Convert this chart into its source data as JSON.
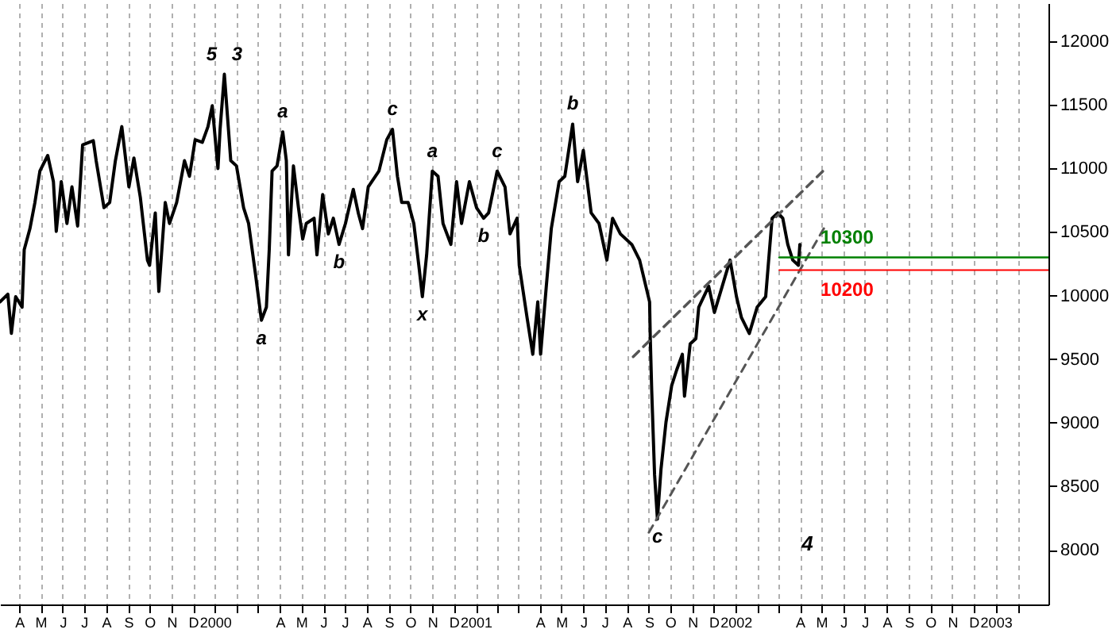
{
  "chart_data": {
    "type": "line",
    "xlim": [
      "1999-03-05",
      "2003-03-16"
    ],
    "ylim": [
      7570,
      12300
    ],
    "xticks": [
      {
        "value": "1999-04",
        "label": "A"
      },
      {
        "value": "1999-05",
        "label": "M"
      },
      {
        "value": "1999-06",
        "label": "J"
      },
      {
        "value": "1999-07",
        "label": "J"
      },
      {
        "value": "1999-08",
        "label": "A"
      },
      {
        "value": "1999-09",
        "label": "S"
      },
      {
        "value": "1999-10",
        "label": "O"
      },
      {
        "value": "1999-11",
        "label": "N"
      },
      {
        "value": "1999-12",
        "label": "D"
      },
      {
        "value": "2000-01",
        "label": "2000"
      },
      {
        "value": "2000-02",
        "label": null
      },
      {
        "value": "2000-03",
        "label": null
      },
      {
        "value": "2000-04",
        "label": "A"
      },
      {
        "value": "2000-05",
        "label": "M"
      },
      {
        "value": "2000-06",
        "label": "J"
      },
      {
        "value": "2000-07",
        "label": "J"
      },
      {
        "value": "2000-08",
        "label": "A"
      },
      {
        "value": "2000-09",
        "label": "S"
      },
      {
        "value": "2000-10",
        "label": "O"
      },
      {
        "value": "2000-11",
        "label": "N"
      },
      {
        "value": "2000-12",
        "label": "D"
      },
      {
        "value": "2001-01",
        "label": "2001"
      },
      {
        "value": "2001-02",
        "label": null
      },
      {
        "value": "2001-03",
        "label": null
      },
      {
        "value": "2001-04",
        "label": "A"
      },
      {
        "value": "2001-05",
        "label": "M"
      },
      {
        "value": "2001-06",
        "label": "J"
      },
      {
        "value": "2001-07",
        "label": "J"
      },
      {
        "value": "2001-08",
        "label": "A"
      },
      {
        "value": "2001-09",
        "label": "S"
      },
      {
        "value": "2001-10",
        "label": "O"
      },
      {
        "value": "2001-11",
        "label": "N"
      },
      {
        "value": "2001-12",
        "label": "D"
      },
      {
        "value": "2002-01",
        "label": "2002"
      },
      {
        "value": "2002-02",
        "label": null
      },
      {
        "value": "2002-03",
        "label": null
      },
      {
        "value": "2002-04",
        "label": "A"
      },
      {
        "value": "2002-05",
        "label": "M"
      },
      {
        "value": "2002-06",
        "label": "J"
      },
      {
        "value": "2002-07",
        "label": "J"
      },
      {
        "value": "2002-08",
        "label": "A"
      },
      {
        "value": "2002-09",
        "label": "S"
      },
      {
        "value": "2002-10",
        "label": "O"
      },
      {
        "value": "2002-11",
        "label": "N"
      },
      {
        "value": "2002-12",
        "label": "D"
      },
      {
        "value": "2003-01",
        "label": "2003"
      },
      {
        "value": "2003-02",
        "label": null
      }
    ],
    "yticks": [
      8000,
      8500,
      9000,
      9500,
      10000,
      10500,
      11000,
      11500,
      12000
    ],
    "grid": "x",
    "series": [
      {
        "color": "#000000",
        "x": [
          "1999-03-05",
          "1999-03-16",
          "1999-03-21",
          "1999-03-27",
          "1999-04-05",
          "1999-04-08",
          "1999-04-16",
          "1999-04-23",
          "1999-04-30",
          "1999-05-11",
          "1999-05-19",
          "1999-05-23",
          "1999-05-30",
          "1999-06-07",
          "1999-06-14",
          "1999-06-22",
          "1999-06-29",
          "1999-07-14",
          "1999-07-18",
          "1999-07-29",
          "1999-08-06",
          "1999-08-14",
          "1999-08-23",
          "1999-09-02",
          "1999-09-09",
          "1999-09-18",
          "1999-09-28",
          "1999-10-01",
          "1999-10-09",
          "1999-10-14",
          "1999-10-23",
          "1999-10-29",
          "1999-11-08",
          "1999-11-19",
          "1999-11-26",
          "1999-12-04",
          "1999-12-14",
          "1999-12-22",
          "1999-12-28",
          "2000-01-05",
          "2000-01-08",
          "2000-01-14",
          "2000-01-23",
          "2000-01-31",
          "2000-02-10",
          "2000-02-17",
          "2000-02-27",
          "2000-03-06",
          "2000-03-13",
          "2000-03-17",
          "2000-03-21",
          "2000-03-28",
          "2000-04-05",
          "2000-04-10",
          "2000-04-13",
          "2000-04-20",
          "2000-04-27",
          "2000-05-03",
          "2000-05-08",
          "2000-05-19",
          "2000-05-23",
          "2000-05-31",
          "2000-06-08",
          "2000-06-15",
          "2000-06-23",
          "2000-07-02",
          "2000-07-13",
          "2000-07-20",
          "2000-07-26",
          "2000-08-03",
          "2000-08-18",
          "2000-08-29",
          "2000-09-06",
          "2000-09-13",
          "2000-09-19",
          "2000-09-28",
          "2000-10-06",
          "2000-10-13",
          "2000-10-18",
          "2000-10-24",
          "2000-11-01",
          "2000-11-09",
          "2000-11-16",
          "2000-11-27",
          "2000-12-05",
          "2000-12-12",
          "2000-12-23",
          "2001-01-02",
          "2001-01-12",
          "2001-01-19",
          "2001-01-31",
          "2001-02-11",
          "2001-02-18",
          "2001-02-28",
          "2001-03-03",
          "2001-03-14",
          "2001-03-22",
          "2001-03-29",
          "2001-04-02",
          "2001-04-10",
          "2001-04-17",
          "2001-04-28",
          "2001-05-06",
          "2001-05-17",
          "2001-05-24",
          "2001-06-01",
          "2001-06-12",
          "2001-06-23",
          "2001-07-04",
          "2001-07-12",
          "2001-07-23",
          "2001-08-08",
          "2001-08-19",
          "2001-09-02",
          "2001-09-03",
          "2001-09-05",
          "2001-09-09",
          "2001-09-13",
          "2001-09-18",
          "2001-09-25",
          "2001-10-03",
          "2001-10-10",
          "2001-10-18",
          "2001-10-21",
          "2001-10-29",
          "2001-11-06",
          "2001-11-10",
          "2001-11-24",
          "2001-12-02",
          "2001-12-13",
          "2001-12-24",
          "2002-01-02",
          "2002-01-09",
          "2002-01-20",
          "2002-01-31",
          "2002-02-12",
          "2002-02-21",
          "2002-03-01",
          "2002-03-08",
          "2002-03-15",
          "2002-03-22",
          "2002-03-30",
          "2002-04-01"
        ],
        "values": [
          9950,
          10011,
          9702,
          9991,
          9908,
          10361,
          10526,
          10732,
          10979,
          11102,
          10896,
          10505,
          10896,
          10567,
          10855,
          10547,
          11185,
          11218,
          11061,
          10691,
          10732,
          11061,
          11329,
          10855,
          11082,
          10773,
          10279,
          10238,
          10650,
          10032,
          10732,
          10567,
          10732,
          11061,
          10938,
          11226,
          11205,
          11329,
          11493,
          10999,
          11308,
          11741,
          11061,
          11020,
          10691,
          10567,
          10155,
          9806,
          9908,
          10361,
          10979,
          11020,
          11288,
          11061,
          10320,
          11020,
          10691,
          10444,
          10567,
          10608,
          10320,
          10794,
          10485,
          10608,
          10402,
          10567,
          10835,
          10650,
          10526,
          10855,
          10979,
          11226,
          11308,
          10938,
          10732,
          10732,
          10567,
          10238,
          9991,
          10320,
          10979,
          10938,
          10567,
          10402,
          10896,
          10567,
          10896,
          10691,
          10608,
          10650,
          10979,
          10855,
          10485,
          10608,
          10238,
          9826,
          9538,
          9950,
          9538,
          10073,
          10526,
          10896,
          10938,
          11349,
          10896,
          11143,
          10650,
          10567,
          10279,
          10608,
          10485,
          10402,
          10279,
          9950,
          9661,
          9250,
          8591,
          8241,
          8632,
          9003,
          9291,
          9414,
          9538,
          9208,
          9620,
          9661,
          9908,
          10073,
          9867,
          10073,
          10279,
          9991,
          9826,
          9702,
          9908,
          9991,
          10608,
          10650,
          10608,
          10402,
          10279,
          10238,
          10402
        ]
      },
      {
        "color": "#555555",
        "line_style": "dashed",
        "x": [
          "2001-08-10",
          "2002-05-05"
        ],
        "values": [
          9519,
          10988
        ]
      },
      {
        "color": "#555555",
        "line_style": "dashed",
        "x": [
          "2001-09-01",
          "2002-05-05"
        ],
        "values": [
          8136,
          10531
        ]
      },
      {
        "name": "10300",
        "color": "#008000",
        "x": [
          "2002-03-03",
          "2003-03-16"
        ],
        "values": [
          10300,
          10300
        ]
      },
      {
        "name": "10200",
        "color": "#ff0000",
        "x": [
          "2002-03-03",
          "2003-03-16"
        ],
        "values": [
          10200,
          10200
        ]
      }
    ],
    "annotations": [
      {
        "text": "5",
        "x": "2000-01-14",
        "y": 11741
      },
      {
        "text": "3",
        "x": "2000-01-14",
        "y": 11741
      },
      {
        "text": "a",
        "x": "2000-03-06",
        "y": 9806
      },
      {
        "text": "a",
        "x": "2000-04-05",
        "y": 11288
      },
      {
        "text": "b",
        "x": "2000-06-23",
        "y": 10402
      },
      {
        "text": "c",
        "x": "2000-09-06",
        "y": 11308
      },
      {
        "text": "x",
        "x": "2000-10-18",
        "y": 9991
      },
      {
        "text": "a",
        "x": "2000-11-01",
        "y": 10979
      },
      {
        "text": "b",
        "x": "2001-01-12",
        "y": 10608
      },
      {
        "text": "c",
        "x": "2001-01-31",
        "y": 10979
      },
      {
        "text": "b",
        "x": "2001-05-17",
        "y": 11349
      },
      {
        "text": "c",
        "x": "2001-09-13",
        "y": 8241
      },
      "4"
    ]
  }
}
